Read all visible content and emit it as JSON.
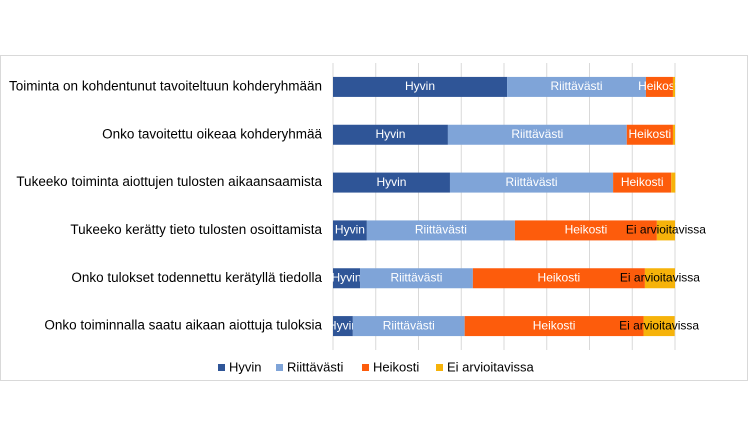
{
  "chart_data": {
    "type": "stacked-bar-horizontal",
    "categories": [
      "Toiminta on kohdentunut tavoiteltuun kohderyhmään",
      "Onko tavoitettu oikeaa kohderyhmää",
      "Tukeeko toiminta aiottujen tulosten aikaansaamista",
      "Tukeeko kerätty tieto tulosten osoittamista",
      "Onko tulokset todennettu kerätyllä tiedolla",
      "Onko toiminnalla saatu aikaan aiottuja tuloksia"
    ],
    "series": [
      {
        "name": "Hyvin",
        "color": "#2f5597",
        "values": [
          50.9,
          33.6,
          34.2,
          9.9,
          7.9,
          5.8
        ]
      },
      {
        "name": "Riittävästi",
        "color": "#7fa4d8",
        "values": [
          40.6,
          52.3,
          47.7,
          43.3,
          33.0,
          32.7
        ]
      },
      {
        "name": "Heikosti",
        "color": "#fd5c0c",
        "values": [
          7.9,
          13.5,
          17.0,
          41.5,
          50.3,
          52.3
        ]
      },
      {
        "name": "Ei arvioitavissa",
        "color": "#f6b30a",
        "values": [
          0.6,
          0.6,
          1.2,
          5.3,
          8.8,
          9.1
        ]
      }
    ],
    "xlim": [
      0,
      100
    ],
    "xticks": [
      0,
      12.5,
      25,
      37.5,
      50,
      62.5,
      75,
      87.5,
      100
    ],
    "grid": true,
    "legend": "bottom"
  }
}
